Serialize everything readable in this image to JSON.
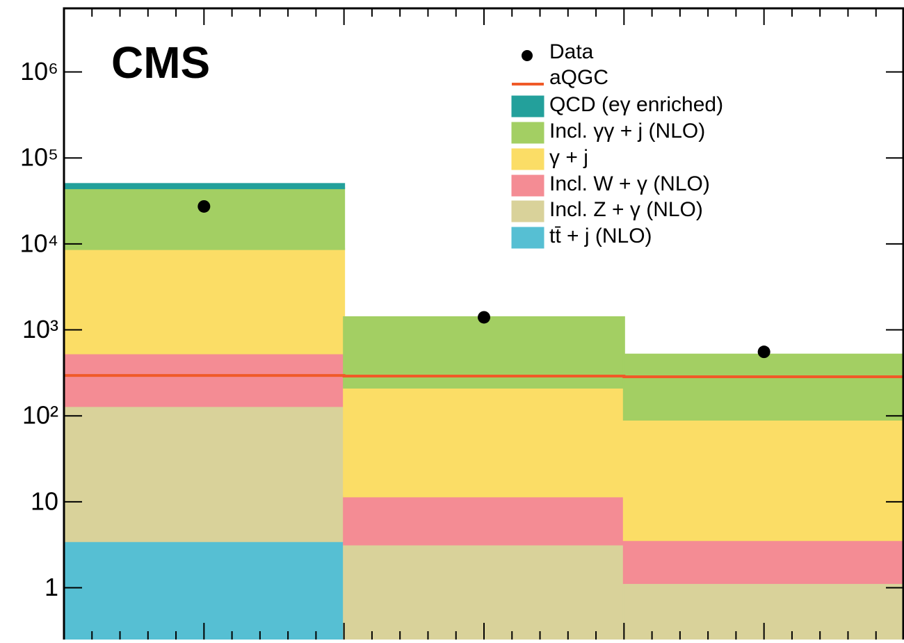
{
  "chart_data": {
    "type": "bar",
    "stacked": true,
    "log_y": true,
    "label": "CMS",
    "categories": [
      null,
      null,
      null
    ],
    "ylim": [
      0.25,
      5500000
    ],
    "yticks": [
      1,
      10,
      {
        "value": 100,
        "label": "10²"
      },
      {
        "value": 1000,
        "label": "10³"
      },
      {
        "value": 10000,
        "label": "10⁴"
      },
      {
        "value": 100000,
        "label": "10⁵"
      },
      {
        "value": 1000000,
        "label": "10⁶"
      }
    ],
    "series": [
      {
        "name": "Data",
        "type": "scatter",
        "color": "#000000",
        "values": [
          27300,
          1400,
          555
        ]
      },
      {
        "name": "aQGC",
        "type": "line",
        "color": "#f05a28",
        "values": [
          295,
          290,
          285
        ]
      },
      {
        "name": "QCD (eγ enriched)",
        "type": "bar",
        "color": "#23a09b",
        "values": [
          5100,
          0,
          0
        ]
      },
      {
        "name": "Incl. γγ + j (NLO)",
        "type": "bar",
        "color": "#a3cf63",
        "values": [
          35800,
          1186,
          424
        ]
      },
      {
        "name": "γ + j",
        "type": "bar",
        "color": "#fbdd66",
        "values": [
          8200,
          202,
          87
        ]
      },
      {
        "name": "Incl. W + γ (NLO)",
        "type": "bar",
        "color": "#f48c94",
        "values": [
          405,
          8.4,
          2.46
        ]
      },
      {
        "name": "Incl. Z + γ (NLO)",
        "type": "bar",
        "color": "#d9d29a",
        "values": [
          127,
          3.2,
          1.14
        ]
      },
      {
        "name": "tt̄ + j (NLO)",
        "type": "bar",
        "color": "#56bfd3",
        "values": [
          3.5,
          0,
          0
        ]
      }
    ]
  }
}
